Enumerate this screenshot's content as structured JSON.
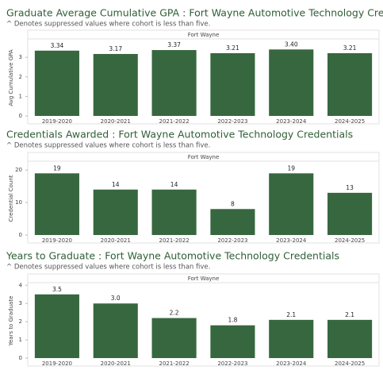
{
  "chart_data": [
    {
      "type": "bar",
      "title": "Graduate Average Cumulative GPA : Fort Wayne Automotive Technology Credentials",
      "subtitle": "^ Denotes suppressed values where cohort is less than five.",
      "facet": "Fort Wayne",
      "y_label": "Avg Cumulative GPA",
      "categories": [
        "2019-2020",
        "2020-2021",
        "2021-2022",
        "2022-2023",
        "2023-2024",
        "2024-2025"
      ],
      "values": [
        3.34,
        3.17,
        3.37,
        3.21,
        3.4,
        3.21
      ],
      "value_labels": [
        "3.34",
        "3.17",
        "3.37",
        "3.21",
        "3.40",
        "3.21"
      ],
      "color": "#37673f",
      "ylim": [
        0,
        3.9
      ],
      "yticks": [
        0,
        1,
        2,
        3
      ]
    },
    {
      "type": "bar",
      "title": "Credentials Awarded : Fort Wayne Automotive Technology Credentials",
      "subtitle": "^ Denotes suppressed values where cohort is less than five.",
      "facet": "Fort Wayne",
      "y_label": "Credential Count",
      "categories": [
        "2019-2020",
        "2020-2021",
        "2021-2022",
        "2022-2023",
        "2023-2024",
        "2024-2025"
      ],
      "values": [
        19,
        14,
        14,
        8,
        19,
        13
      ],
      "color": "#37673f",
      "ylim": [
        0,
        22.5
      ],
      "yticks": [
        0,
        10,
        20
      ]
    },
    {
      "type": "bar",
      "title": "Years to Graduate : Fort Wayne Automotive Technology Credentials",
      "subtitle": "^ Denotes suppressed values where cohort is less than five.",
      "facet": "Fort Wayne",
      "y_label": "Years to Graduate",
      "categories": [
        "2019-2020",
        "2020-2021",
        "2021-2022",
        "2022-2023",
        "2023-2024",
        "2024-2025"
      ],
      "values": [
        3.5,
        3.0,
        2.2,
        1.8,
        2.1,
        2.1
      ],
      "value_labels": [
        "3.5",
        "3.0",
        "2.2",
        "1.8",
        "2.1",
        "2.1"
      ],
      "color": "#37673f",
      "ylim": [
        0,
        4.1
      ],
      "yticks": [
        0,
        1,
        2,
        3,
        4
      ]
    }
  ]
}
